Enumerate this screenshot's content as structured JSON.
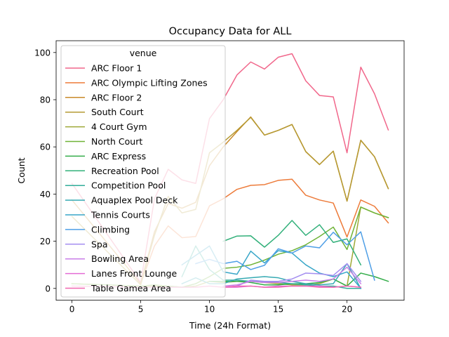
{
  "chart_data": {
    "type": "line",
    "title": "Occupancy Data for ALL",
    "xlabel": "Time (24h Format)",
    "ylabel": "Count",
    "xlim": [
      -1.15,
      24.15
    ],
    "ylim": [
      -5,
      105
    ],
    "xticks": [
      0,
      5,
      10,
      15,
      20
    ],
    "yticks": [
      0,
      20,
      40,
      60,
      80,
      100
    ],
    "grid": false,
    "legend": {
      "title": "venue",
      "placement": "top-left"
    },
    "series": [
      {
        "name": "ARC Floor 1",
        "color": "#f1678b",
        "x": [
          0,
          5,
          6,
          7,
          8,
          9,
          10,
          11,
          12,
          13,
          14,
          15,
          16,
          17,
          18,
          19,
          20,
          21,
          22,
          23
        ],
        "y": [
          44.5,
          2.5,
          38,
          50.5,
          46,
          44.5,
          72,
          80,
          90.5,
          96,
          93,
          98,
          99.5,
          88,
          81.8,
          81.2,
          57.5,
          93.8,
          82.5,
          67.2
        ]
      },
      {
        "name": "ARC Olympic Lifting Zones",
        "color": "#ed7b3a",
        "x": [
          5,
          6,
          7,
          8,
          9,
          10,
          11,
          12,
          13,
          14,
          15,
          16,
          17,
          18,
          19,
          20,
          21,
          22,
          23
        ],
        "y": [
          2,
          18,
          26.5,
          21.5,
          22,
          35,
          38,
          42,
          43.7,
          44,
          45.8,
          46.3,
          39.5,
          37.5,
          36.2,
          21.8,
          37.5,
          34.8,
          27.8
        ]
      },
      {
        "name": "ARC Floor 2",
        "color": "#c98a2a",
        "x": [
          0,
          5,
          6,
          7,
          8,
          9,
          10,
          11,
          12,
          13,
          14,
          15,
          16,
          17,
          18,
          19,
          20,
          21,
          22,
          23
        ],
        "y": [
          37.5,
          2,
          24,
          36,
          34,
          36.5,
          52,
          60,
          66.5,
          72.7,
          65,
          67,
          69.5,
          58,
          52.5,
          58.2,
          37,
          62.8,
          55.8,
          42.3
        ]
      },
      {
        "name": "South Court",
        "color": "#b59a33",
        "x": [
          0,
          5,
          6,
          7,
          8,
          9,
          10,
          11,
          12,
          13,
          14,
          15,
          16,
          17,
          18,
          19,
          20,
          21,
          22,
          23
        ],
        "y": [
          30.5,
          1.5,
          22.5,
          39,
          32,
          33.5,
          57.5,
          62,
          67,
          72.5,
          65,
          67,
          69.5,
          58,
          52.5,
          58.2,
          37,
          62.8,
          55.8,
          42.3
        ]
      },
      {
        "name": "4 Court Gym",
        "color": "#9ea937",
        "x": [
          0,
          5,
          6,
          7,
          8,
          9,
          10,
          11,
          12,
          13,
          14,
          15,
          16,
          17,
          18,
          19,
          20,
          21,
          22,
          23
        ],
        "y": [
          2,
          1,
          1,
          1,
          0.5,
          1,
          3,
          2.5,
          3,
          3,
          2.5,
          2,
          1.5,
          1.5,
          2,
          4,
          1,
          34.5,
          32,
          30
        ]
      },
      {
        "name": "North Court",
        "color": "#6fb337",
        "x": [
          0,
          5,
          6,
          7,
          8,
          9,
          10,
          11,
          12,
          13,
          14,
          15,
          16,
          17,
          18,
          19,
          20,
          21,
          22,
          23
        ],
        "y": [
          2,
          1,
          1.5,
          1,
          0.5,
          2,
          5,
          8.5,
          9,
          10,
          12,
          14.5,
          16,
          18.5,
          22,
          26,
          16.5,
          34.5,
          32,
          30
        ]
      },
      {
        "name": "ARC Express",
        "color": "#34ad4a",
        "x": [
          10,
          11,
          12,
          13,
          14,
          15,
          16,
          17,
          18,
          19,
          20,
          21,
          22,
          23
        ],
        "y": [
          3,
          3,
          3,
          2.5,
          1.5,
          1.5,
          2,
          2,
          2.5,
          4,
          1,
          6.5,
          5,
          3
        ]
      },
      {
        "name": "Recreation Pool",
        "color": "#32b07a",
        "x": [
          11,
          12,
          13,
          14,
          15,
          16,
          17,
          18,
          19,
          20,
          21
        ],
        "y": [
          20,
          22.2,
          22.3,
          17.5,
          22.5,
          28.8,
          22.5,
          27,
          19.5,
          21,
          10
        ]
      },
      {
        "name": "Competition Pool",
        "color": "#32ad9a",
        "x": [
          8,
          9,
          10,
          11,
          12,
          13,
          14,
          15,
          16,
          17,
          18,
          19,
          20,
          21
        ],
        "y": [
          5,
          18,
          8,
          3.5,
          3.5,
          3,
          2.8,
          2.5,
          2,
          1.5,
          1,
          1,
          0,
          0
        ]
      },
      {
        "name": "Aquaplex Pool Deck",
        "color": "#36aab3",
        "x": [
          8,
          9,
          10,
          11,
          12,
          13,
          14,
          15,
          16,
          17,
          18,
          19,
          20,
          21
        ],
        "y": [
          2,
          4.5,
          2,
          2,
          4,
          4.5,
          5,
          4.5,
          3,
          2,
          1.5,
          2,
          10.5,
          0
        ]
      },
      {
        "name": "Tennis Courts",
        "color": "#38a6c8",
        "x": [
          8,
          9,
          10,
          11,
          12,
          13,
          14,
          15,
          16,
          17,
          18,
          19,
          20,
          21
        ],
        "y": [
          10,
          14,
          18,
          7,
          6,
          15.8,
          10.8,
          16,
          15,
          10,
          6.5,
          5,
          7,
          0
        ]
      },
      {
        "name": "Climbing",
        "color": "#4f9fe6",
        "x": [
          9,
          10,
          11,
          12,
          13,
          14,
          15,
          16,
          17,
          18,
          19,
          20,
          21,
          22
        ],
        "y": [
          10.5,
          12.3,
          10.5,
          11.5,
          8,
          9.8,
          16.8,
          15,
          18,
          17.2,
          23.8,
          18.5,
          24,
          3.5
        ]
      },
      {
        "name": "Spa",
        "color": "#a48ef0",
        "x": [
          11,
          12,
          13,
          14,
          15,
          16,
          17,
          18,
          19,
          20,
          21
        ],
        "y": [
          0.5,
          1,
          3.5,
          3,
          3,
          4,
          6.5,
          6.2,
          5.5,
          10.5,
          3
        ]
      },
      {
        "name": "Bowling Area",
        "color": "#c97ee8",
        "x": [
          11,
          12,
          13,
          14,
          15,
          16,
          17,
          18,
          19,
          20,
          21
        ],
        "y": [
          1,
          1.5,
          3,
          2.5,
          2.5,
          3,
          3.5,
          3,
          4,
          9,
          2
        ]
      },
      {
        "name": "Lanes Front Lounge",
        "color": "#e46cd5",
        "x": [
          11,
          12,
          13,
          14,
          15,
          16,
          17,
          18,
          19,
          20,
          21
        ],
        "y": [
          0.5,
          0.5,
          1,
          0.5,
          1,
          1,
          1,
          1,
          0.5,
          1,
          0.5
        ]
      },
      {
        "name": "Table Gamea Area",
        "color": "#f167b0",
        "x": [
          0,
          5,
          6,
          7,
          8,
          9,
          10,
          11,
          12,
          13,
          14,
          15,
          16,
          17,
          18,
          19,
          20,
          21
        ],
        "y": [
          1,
          0.5,
          0.5,
          0.5,
          0.5,
          0.5,
          1,
          0.5,
          1,
          1,
          0.5,
          0.5,
          1,
          1,
          0.5,
          0.5,
          1,
          0.5
        ]
      }
    ]
  }
}
